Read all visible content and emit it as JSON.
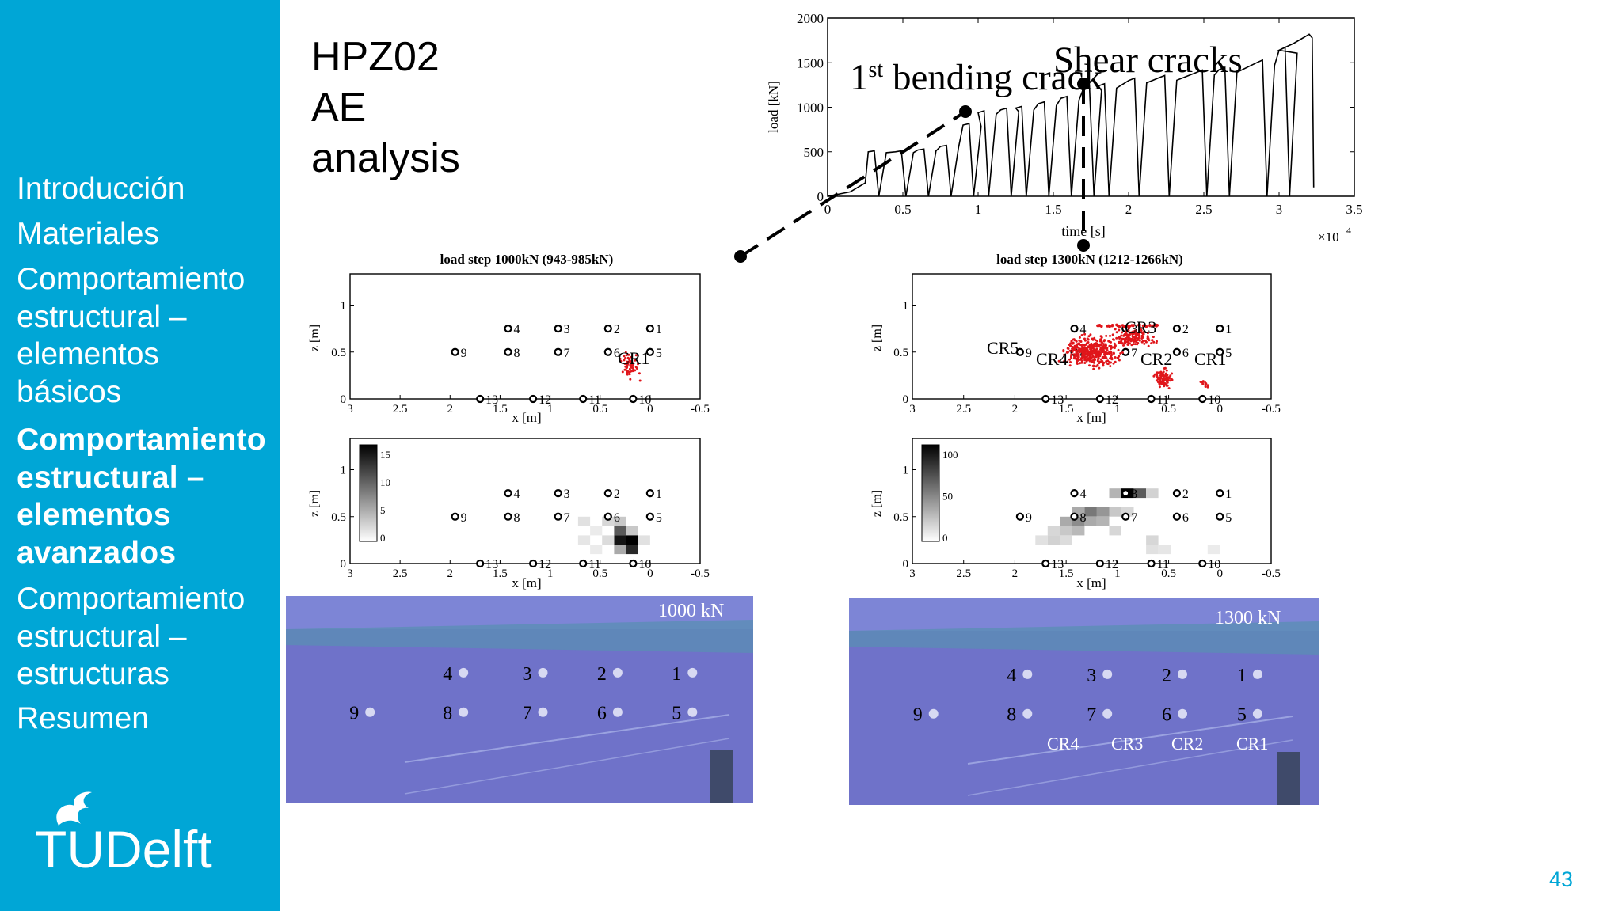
{
  "nav": {
    "items": [
      {
        "label": "Introducción",
        "active": false
      },
      {
        "label": "Materiales",
        "active": false
      },
      {
        "label": "Comportamiento estructural – elementos básicos",
        "active": false
      },
      {
        "label": "Comportamiento estructural – elementos avanzados",
        "active": true
      },
      {
        "label": "Comportamiento estructural – estructuras",
        "active": false
      },
      {
        "label": "Resumen",
        "active": false
      }
    ]
  },
  "logo": {
    "text": "TUDelft"
  },
  "slide": {
    "title_lines": [
      "HPZ02",
      "AE",
      "analysis"
    ],
    "page_number": "43"
  },
  "annotations": {
    "bending_pre": "1",
    "bending_sup": "st",
    "bending_post": " bending crack",
    "shear": "Shear cracks"
  },
  "load_chart": {
    "ylabel": "load [kN]",
    "xlabel": "time [s]",
    "x_multiplier": "×10",
    "x_multiplier_exp": "4",
    "x_ticks": [
      "0",
      "0.5",
      "1",
      "1.5",
      "2",
      "2.5",
      "3",
      "3.5"
    ],
    "y_ticks": [
      "0",
      "500",
      "1000",
      "1500",
      "2000"
    ]
  },
  "panels": {
    "left_title": "load step 1000kN (943-985kN)",
    "right_title": "load step 1300kN (1212-1266kN)",
    "axis_xlabel": "x [m]",
    "axis_zlabel": "z [m]",
    "x_ticks": [
      "3",
      "2.5",
      "2",
      "1.5",
      "1",
      "0.5",
      "0",
      "-0.5"
    ],
    "z_ticks": [
      "0",
      "0.5",
      "1"
    ],
    "left_colorbar_ticks": [
      "0",
      "5",
      "10",
      "15"
    ],
    "right_colorbar_ticks": [
      "0",
      "50",
      "100"
    ],
    "left_crack_labels": [
      "CR1"
    ],
    "right_crack_labels": [
      "CR5",
      "CR4",
      "CR3",
      "CR2",
      "CR1"
    ]
  },
  "photos": {
    "left_label": "1000 kN",
    "right_label": "1300 kN",
    "right_crack_labels": [
      "CR4",
      "CR3",
      "CR2",
      "CR1"
    ]
  },
  "sensors": [
    "1",
    "2",
    "3",
    "4",
    "5",
    "6",
    "7",
    "8",
    "9",
    "10",
    "11",
    "12",
    "13"
  ],
  "colors": {
    "accent": "#00a6d6",
    "scatter": "#e0161b",
    "photo": "#6f72c9"
  }
}
